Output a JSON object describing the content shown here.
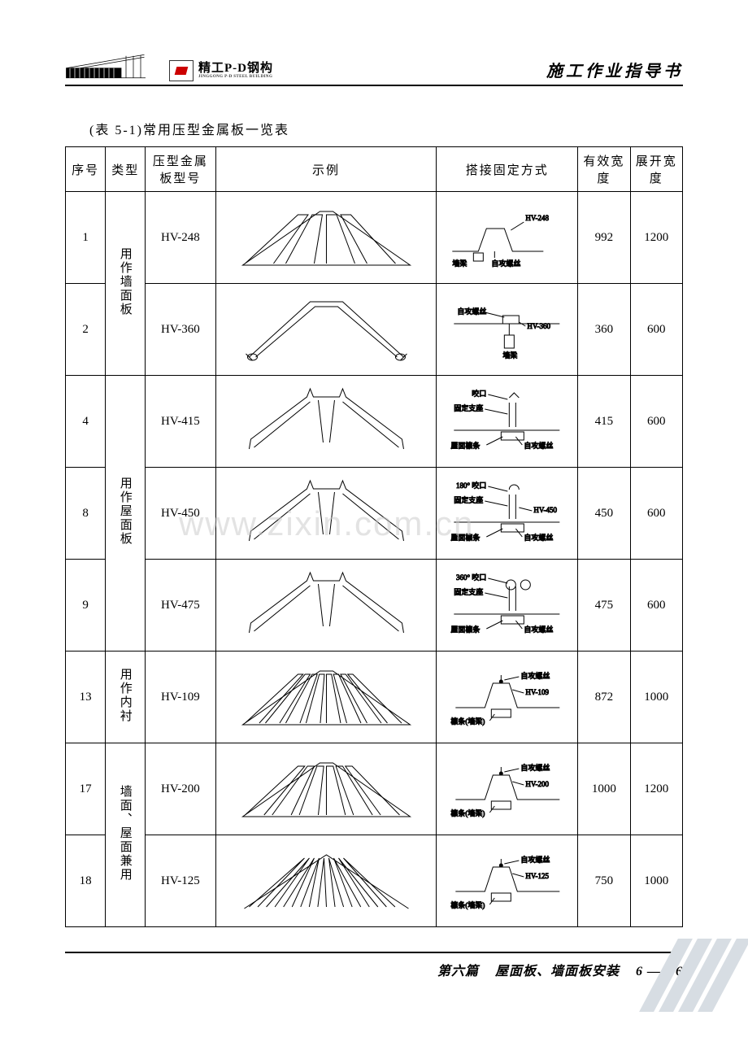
{
  "header": {
    "doc_title": "施工作业指导书",
    "brand_cn": "精工P-D钢构",
    "brand_en": "JINGGONG P-D STEEL BUILDING"
  },
  "table_caption": "(表 5-1)常用压型金属板一览表",
  "columns": {
    "xuhao": "序号",
    "leixing": "类型",
    "xinghao": "压型金属板型号",
    "shili": "示例",
    "dajie": "搭接固定方式",
    "youxiao": "有效宽度",
    "zhankai": "展开宽度"
  },
  "type_groups": {
    "wall": "用作墙面板",
    "roof": "用作屋面板",
    "liner": "用作内衬",
    "both": "墙面、屋面兼用"
  },
  "rows": [
    {
      "no": "1",
      "model": "HV-248",
      "w_eff": "992",
      "w_unf": "1200",
      "fix_kind": "wall",
      "profile": "trapezoid",
      "ribs": 4,
      "fix_labels": {
        "top": "HV-248",
        "left": "墙梁",
        "right": "自攻螺丝"
      }
    },
    {
      "no": "2",
      "model": "HV-360",
      "w_eff": "360",
      "w_unf": "600",
      "fix_kind": "wall2",
      "profile": "box",
      "ribs": 2,
      "fix_labels": {
        "top": "自攻螺丝",
        "mid": "HV-360",
        "bottom": "墙梁"
      }
    },
    {
      "no": "4",
      "model": "HV-415",
      "w_eff": "415",
      "w_unf": "600",
      "fix_kind": "seam",
      "profile": "standing",
      "ribs": 2,
      "fix_labels": {
        "a": "咬口",
        "b": "固定支座",
        "c": "自攻螺丝",
        "d": "屋面檩条"
      }
    },
    {
      "no": "8",
      "model": "HV-450",
      "w_eff": "450",
      "w_unf": "600",
      "fix_kind": "seam180",
      "profile": "standing",
      "ribs": 2,
      "fix_labels": {
        "a": "180° 咬口",
        "b": "固定支座",
        "c": "自攻螺丝",
        "d": "屋面檩条",
        "e": "HV-450"
      }
    },
    {
      "no": "9",
      "model": "HV-475",
      "w_eff": "475",
      "w_unf": "600",
      "fix_kind": "seam360",
      "profile": "standing",
      "ribs": 2,
      "fix_labels": {
        "a": "360° 咬口",
        "b": "固定支座",
        "c": "自攻螺丝",
        "d": "屋面檩条"
      }
    },
    {
      "no": "13",
      "model": "HV-109",
      "w_eff": "872",
      "w_unf": "1000",
      "fix_kind": "liner",
      "profile": "trapezoid",
      "ribs": 8,
      "fix_labels": {
        "top": "自攻螺丝",
        "mid": "HV-109",
        "bottom": "檩条(墙梁)"
      }
    },
    {
      "no": "17",
      "model": "HV-200",
      "w_eff": "1000",
      "w_unf": "1200",
      "fix_kind": "both",
      "profile": "trapezoid",
      "ribs": 6,
      "fix_labels": {
        "top": "自攻螺丝",
        "mid": "HV-200",
        "bottom": "檩条(墙梁)"
      }
    },
    {
      "no": "18",
      "model": "HV-125",
      "w_eff": "750",
      "w_unf": "1000",
      "fix_kind": "both",
      "profile": "wave",
      "ribs": 9,
      "fix_labels": {
        "top": "自攻螺丝",
        "mid": "HV-125",
        "bottom": "檩条(墙梁)"
      }
    }
  ],
  "watermark": "www.zixin.com.cn",
  "footer": {
    "section": "第六篇",
    "title": "屋面板、墙面板安装",
    "page": "6 —106"
  }
}
